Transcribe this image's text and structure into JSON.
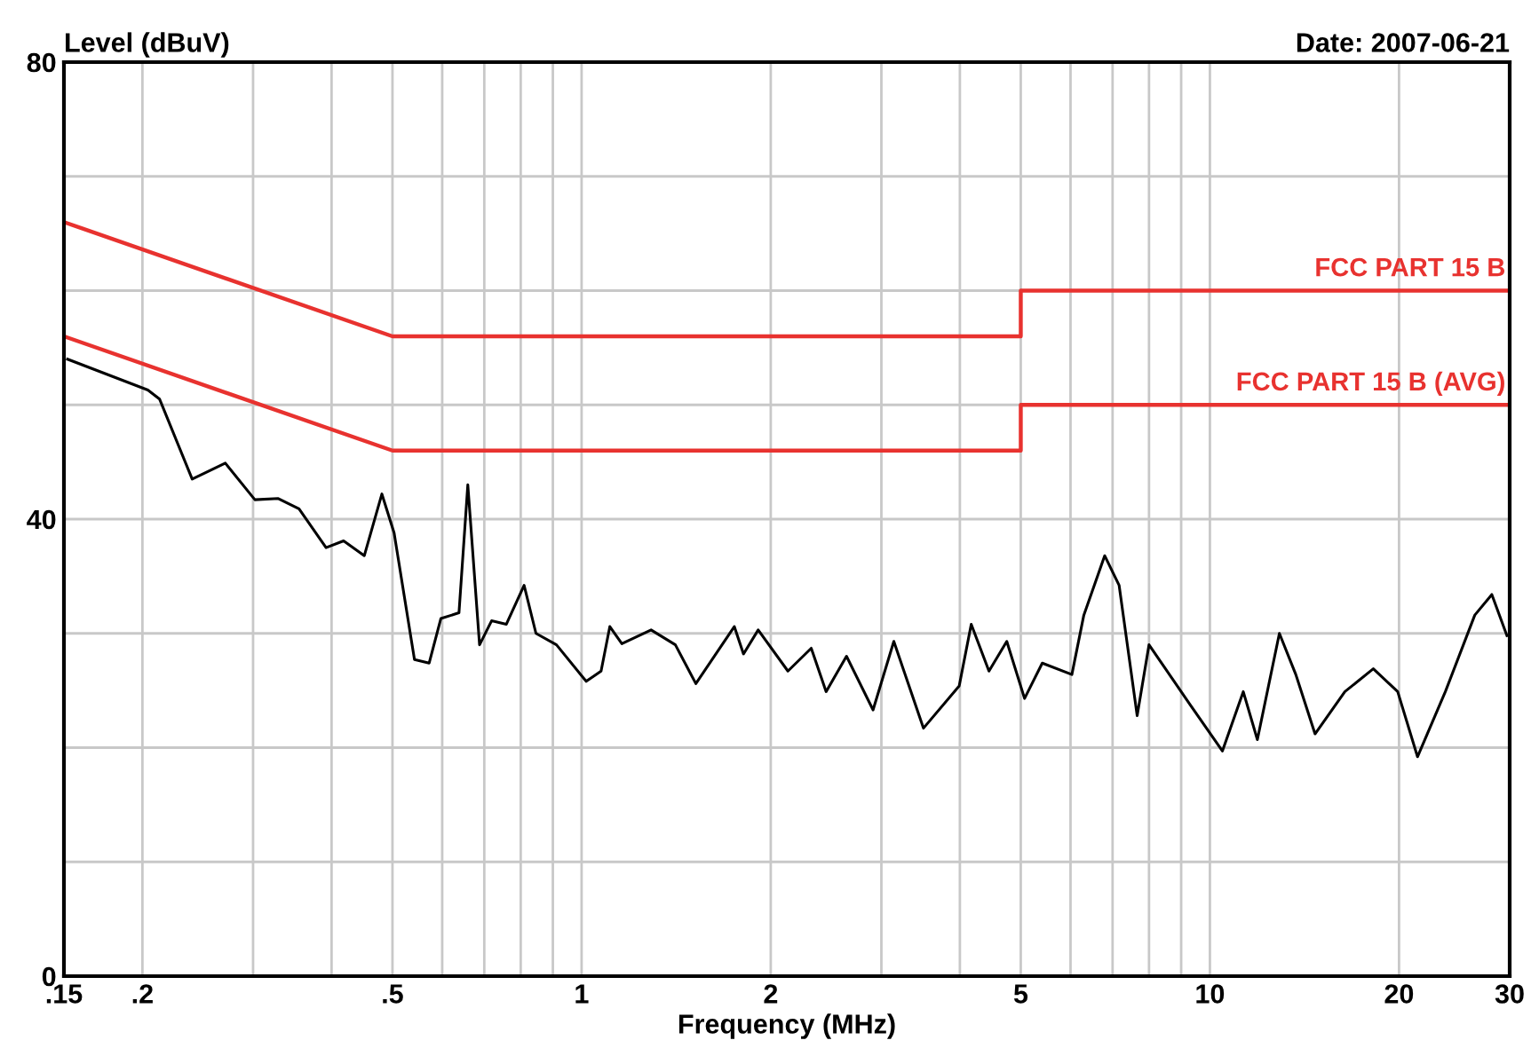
{
  "chart_data": {
    "type": "line",
    "xlabel": "Frequency (MHz)",
    "ylabel": "Level (dBuV)",
    "annotations": [
      "Date: 2007-06-21"
    ],
    "log": "x",
    "grid": true,
    "legend": false,
    "line_style": "solid",
    "marker": "none",
    "xlim": [
      0.15,
      30
    ],
    "ylim": [
      0,
      80
    ],
    "xticks": [
      {
        "value": 0.15,
        "label": ".15"
      },
      {
        "value": 0.2,
        "label": ".2"
      },
      {
        "value": 0.3,
        "label": null
      },
      {
        "value": 0.4,
        "label": null
      },
      {
        "value": 0.5,
        "label": ".5"
      },
      {
        "value": 0.6,
        "label": null
      },
      {
        "value": 0.7,
        "label": null
      },
      {
        "value": 0.8,
        "label": null
      },
      {
        "value": 0.9,
        "label": null
      },
      1,
      2,
      {
        "value": 3,
        "label": null
      },
      {
        "value": 4,
        "label": null
      },
      5,
      {
        "value": 6,
        "label": null
      },
      {
        "value": 7,
        "label": null
      },
      {
        "value": 8,
        "label": null
      },
      {
        "value": 9,
        "label": null
      },
      10,
      20,
      30
    ],
    "yticks": [
      0,
      {
        "value": 10,
        "label": null
      },
      {
        "value": 20,
        "label": null
      },
      {
        "value": 30,
        "label": null
      },
      40,
      {
        "value": 50,
        "label": null
      },
      {
        "value": 60,
        "label": null
      },
      {
        "value": 70,
        "label": null
      },
      80
    ],
    "series": [
      {
        "name": "FCC PART 15 B",
        "color": "#e8322f",
        "x": [
          0.15,
          0.5,
          5,
          5,
          30
        ],
        "values": [
          66,
          56,
          56,
          60,
          60
        ]
      },
      {
        "name": "FCC PART 15 B (AVG)",
        "color": "#e8322f",
        "x": [
          0.15,
          0.5,
          5,
          5,
          30
        ],
        "values": [
          56,
          46,
          46,
          50,
          50
        ]
      },
      {
        "color": "#000000",
        "x": [
          0.152,
          0.204,
          0.213,
          0.24,
          0.271,
          0.302,
          0.329,
          0.355,
          0.392,
          0.418,
          0.451,
          0.481,
          0.503,
          0.542,
          0.572,
          0.597,
          0.638,
          0.659,
          0.688,
          0.719,
          0.759,
          0.81,
          0.846,
          0.912,
          1.017,
          1.074,
          1.109,
          1.159,
          1.29,
          1.41,
          1.52,
          1.75,
          1.81,
          1.91,
          2.13,
          2.32,
          2.45,
          2.64,
          2.91,
          3.14,
          3.5,
          3.99,
          4.17,
          4.45,
          4.75,
          5.07,
          5.41,
          6.03,
          6.3,
          6.8,
          7.17,
          7.66,
          8.0,
          9.29,
          10.47,
          11.3,
          11.9,
          12.9,
          13.7,
          14.7,
          16.4,
          18.2,
          19.9,
          21.4,
          23.7,
          26.4,
          28.1,
          29.7
        ],
        "values": [
          54.0,
          51.3,
          50.5,
          43.5,
          44.9,
          41.7,
          41.8,
          40.9,
          37.5,
          38.1,
          36.8,
          42.2,
          38.8,
          27.7,
          27.4,
          31.3,
          31.8,
          43.0,
          29.0,
          31.1,
          30.8,
          34.2,
          30.0,
          29.0,
          25.8,
          26.7,
          30.6,
          29.1,
          30.3,
          29.0,
          25.6,
          30.6,
          28.2,
          30.3,
          26.7,
          28.7,
          24.9,
          28.0,
          23.3,
          29.3,
          21.7,
          25.4,
          30.8,
          26.7,
          29.3,
          24.3,
          27.4,
          26.4,
          31.6,
          36.8,
          34.2,
          22.8,
          29.0,
          23.8,
          19.7,
          24.9,
          20.7,
          30.0,
          26.4,
          21.2,
          24.9,
          26.9,
          24.9,
          19.2,
          24.9,
          31.6,
          33.4,
          29.8
        ]
      }
    ]
  }
}
